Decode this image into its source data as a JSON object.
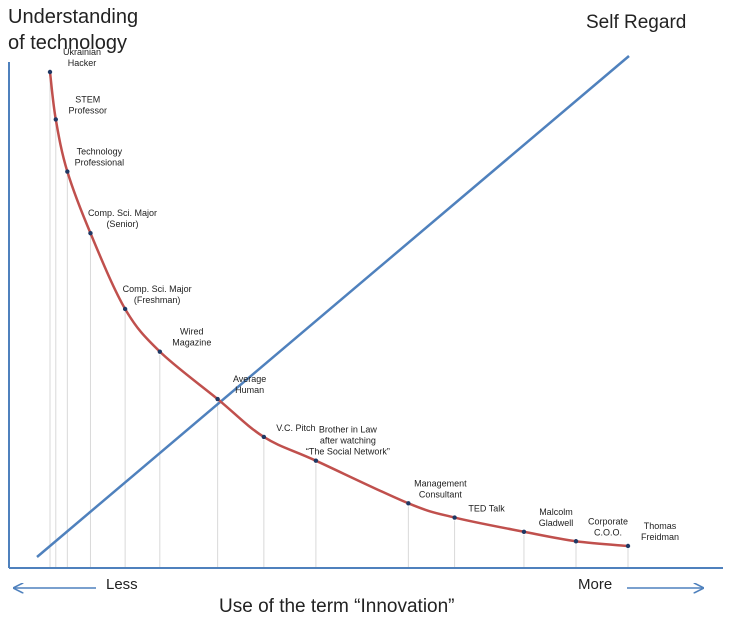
{
  "chart_data": {
    "type": "line",
    "title": "",
    "ylabel": "Understanding\nof technology",
    "xlabel": "Use of the term “Innovation”",
    "x_axis_ends": {
      "left": "Less",
      "right": "More"
    },
    "grid": false,
    "series": [
      {
        "name": "",
        "color": "#c0504d",
        "points": [
          {
            "label": "Ukrainian\nHacker",
            "x": 0.0,
            "y": 1.0
          },
          {
            "label": "STEM\nProfessor",
            "x": 0.01,
            "y": 0.9
          },
          {
            "label": "Technology\nProfessional",
            "x": 0.03,
            "y": 0.79
          },
          {
            "label": "Comp. Sci. Major\n(Senior)",
            "x": 0.07,
            "y": 0.66
          },
          {
            "label": "Comp. Sci. Major\n(Freshman)",
            "x": 0.13,
            "y": 0.5
          },
          {
            "label": "Wired\nMagazine",
            "x": 0.19,
            "y": 0.41
          },
          {
            "label": "Average\nHuman",
            "x": 0.29,
            "y": 0.31
          },
          {
            "label": "V.C. Pitch",
            "x": 0.37,
            "y": 0.23
          },
          {
            "label": "Brother in Law\nafter watching\n“The Social Network”",
            "x": 0.46,
            "y": 0.18
          },
          {
            "label": "Management\nConsultant",
            "x": 0.62,
            "y": 0.09
          },
          {
            "label": "TED Talk",
            "x": 0.7,
            "y": 0.06
          },
          {
            "label": "Malcolm\nGladwell",
            "x": 0.82,
            "y": 0.03
          },
          {
            "label": "Corporate\nC.O.O.",
            "x": 0.91,
            "y": 0.01
          },
          {
            "label": "Thomas\nFreidman",
            "x": 1.0,
            "y": 0.0
          }
        ]
      },
      {
        "name": "Self Regard",
        "color": "#4f81bd",
        "points": [
          {
            "x": 0.0,
            "y": 0.0
          },
          {
            "x": 1.0,
            "y": 1.0
          }
        ]
      }
    ],
    "colors": {
      "axes": "#4f81bd",
      "guides": "#d9d9d9",
      "markers": "#1f3864"
    }
  }
}
